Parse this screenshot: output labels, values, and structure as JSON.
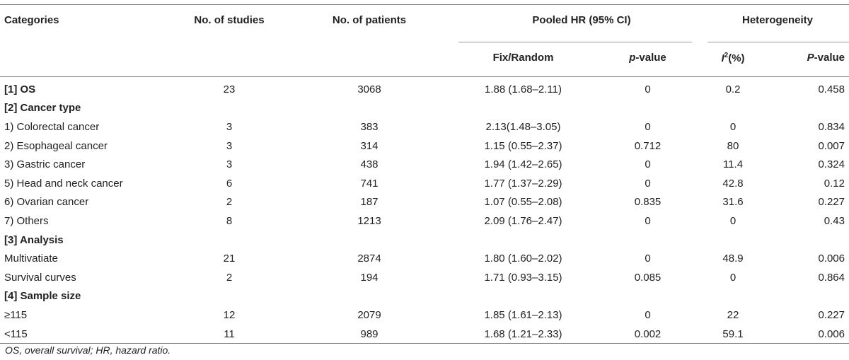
{
  "headers": {
    "categories": "Categories",
    "no_studies": "No. of studies",
    "no_patients": "No. of patients",
    "pooled_hr": "Pooled HR (95% CI)",
    "heterogeneity": "Heterogeneity",
    "fix_random": "Fix/Random",
    "p_value_prefix": "p",
    "p_value_suffix": "-value",
    "i2_base": "I",
    "i2_sup": "2",
    "i2_suffix": "(%)",
    "P_value_prefix": "P",
    "P_value_suffix": "-value"
  },
  "rows": [
    {
      "type": "data",
      "bold": true,
      "cells": [
        "[1] OS",
        "23",
        "3068",
        "1.88 (1.68–2.11)",
        "0",
        "0.2",
        "0.458"
      ]
    },
    {
      "type": "section",
      "label": "[2] Cancer type"
    },
    {
      "type": "data",
      "cells": [
        "1) Colorectal cancer",
        "3",
        "383",
        "2.13(1.48–3.05)",
        "0",
        "0",
        "0.834"
      ]
    },
    {
      "type": "data",
      "cells": [
        "2) Esophageal cancer",
        "3",
        "314",
        "1.15 (0.55–2.37)",
        "0.712",
        "80",
        "0.007"
      ]
    },
    {
      "type": "data",
      "cells": [
        "3) Gastric cancer",
        "3",
        "438",
        "1.94 (1.42–2.65)",
        "0",
        "11.4",
        "0.324"
      ]
    },
    {
      "type": "data",
      "cells": [
        "5) Head and neck cancer",
        "6",
        "741",
        "1.77 (1.37–2.29)",
        "0",
        "42.8",
        "0.12"
      ]
    },
    {
      "type": "data",
      "cells": [
        "6) Ovarian cancer",
        "2",
        "187",
        "1.07 (0.55–2.08)",
        "0.835",
        "31.6",
        "0.227"
      ]
    },
    {
      "type": "data",
      "cells": [
        "7) Others",
        "8",
        "1213",
        "2.09 (1.76–2.47)",
        "0",
        "0",
        "0.43"
      ]
    },
    {
      "type": "section",
      "label": "[3] Analysis"
    },
    {
      "type": "data",
      "cells": [
        "Multivatiate",
        "21",
        "2874",
        "1.80 (1.60–2.02)",
        "0",
        "48.9",
        "0.006"
      ]
    },
    {
      "type": "data",
      "cells": [
        "Survival curves",
        "2",
        "194",
        "1.71 (0.93–3.15)",
        "0.085",
        "0",
        "0.864"
      ]
    },
    {
      "type": "section",
      "label": "[4] Sample size"
    },
    {
      "type": "data",
      "cells": [
        "≥115",
        "12",
        "2079",
        "1.85 (1.61–2.13)",
        "0",
        "22",
        "0.227"
      ]
    },
    {
      "type": "data",
      "cells": [
        "<115",
        "11",
        "989",
        "1.68 (1.21–2.33)",
        "0.002",
        "59.1",
        "0.006"
      ]
    }
  ],
  "footnote": "OS, overall survival; HR, hazard ratio."
}
